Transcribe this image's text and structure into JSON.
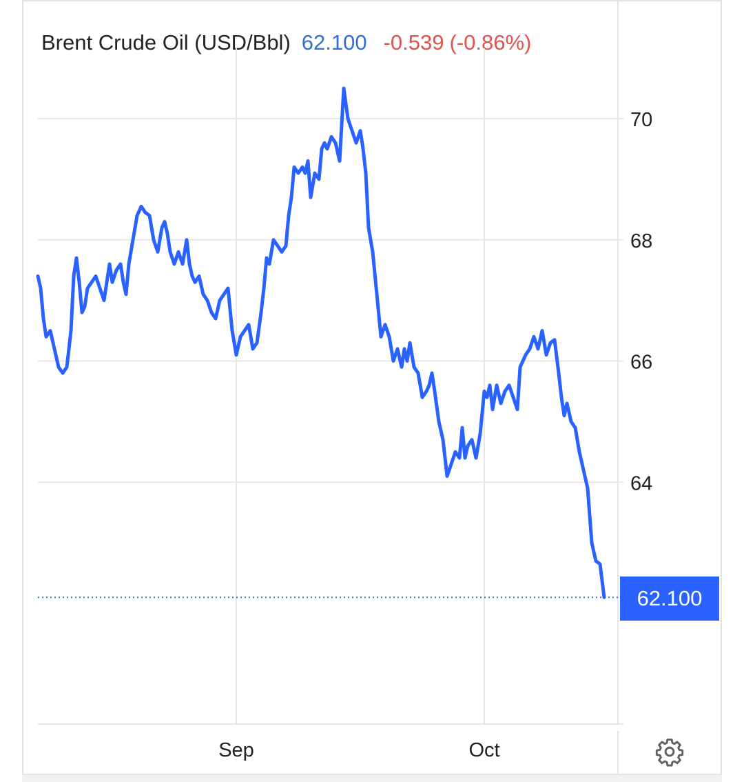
{
  "header": {
    "title": "Brent Crude Oil (USD/Bbl)",
    "last": "62.100",
    "change": "-0.539",
    "change_pct": "(-0.86%)"
  },
  "colors": {
    "line": "#2962ff",
    "last_text": "#2f6fd6",
    "negative": "#e0524f",
    "grid": "#e6e6e6"
  },
  "price_label": "62.100",
  "settings_icon": "gear-icon",
  "chart_data": {
    "type": "line",
    "title": "Brent Crude Oil (USD/Bbl)",
    "xlabel": "",
    "ylabel": "",
    "y_ticks": [
      64,
      66,
      68,
      70
    ],
    "x_ticks": [
      {
        "label": "Sep",
        "date": "2025-09-01"
      },
      {
        "label": "Oct",
        "date": "2025-10-01"
      }
    ],
    "xlim": [
      "2025-08-08",
      "2025-10-17"
    ],
    "ylim": [
      58.0,
      71.0
    ],
    "grid": true,
    "legend": "none",
    "last_value": 62.1,
    "series": [
      {
        "values": [
          [
            "2025-08-08",
            67.4
          ],
          [
            "2025-08-08",
            67.2
          ],
          [
            "2025-08-08",
            66.7
          ],
          [
            "2025-08-09",
            66.4
          ],
          [
            "2025-08-09",
            66.5
          ],
          [
            "2025-08-10",
            66.2
          ],
          [
            "2025-08-10",
            65.9
          ],
          [
            "2025-08-11",
            65.8
          ],
          [
            "2025-08-11",
            65.9
          ],
          [
            "2025-08-12",
            66.5
          ],
          [
            "2025-08-12",
            67.4
          ],
          [
            "2025-08-12",
            67.7
          ],
          [
            "2025-08-13",
            67.3
          ],
          [
            "2025-08-13",
            66.8
          ],
          [
            "2025-08-13",
            66.9
          ],
          [
            "2025-08-14",
            67.2
          ],
          [
            "2025-08-14",
            67.3
          ],
          [
            "2025-08-15",
            67.4
          ],
          [
            "2025-08-15",
            67.2
          ],
          [
            "2025-08-16",
            67.0
          ],
          [
            "2025-08-16",
            67.3
          ],
          [
            "2025-08-16",
            67.6
          ],
          [
            "2025-08-17",
            67.3
          ],
          [
            "2025-08-17",
            67.5
          ],
          [
            "2025-08-18",
            67.6
          ],
          [
            "2025-08-18",
            67.3
          ],
          [
            "2025-08-18",
            67.1
          ],
          [
            "2025-08-19",
            67.6
          ],
          [
            "2025-08-19",
            68.0
          ],
          [
            "2025-08-20",
            68.4
          ],
          [
            "2025-08-20",
            68.55
          ],
          [
            "2025-08-21",
            68.45
          ],
          [
            "2025-08-21",
            68.4
          ],
          [
            "2025-08-22",
            68.0
          ],
          [
            "2025-08-22",
            67.8
          ],
          [
            "2025-08-23",
            68.2
          ],
          [
            "2025-08-23",
            68.3
          ],
          [
            "2025-08-23",
            68.1
          ],
          [
            "2025-08-24",
            67.8
          ],
          [
            "2025-08-24",
            67.6
          ],
          [
            "2025-08-25",
            67.8
          ],
          [
            "2025-08-25",
            67.6
          ],
          [
            "2025-08-26",
            68.0
          ],
          [
            "2025-08-26",
            67.6
          ],
          [
            "2025-08-26",
            67.4
          ],
          [
            "2025-08-27",
            67.3
          ],
          [
            "2025-08-27",
            67.4
          ],
          [
            "2025-08-28",
            67.1
          ],
          [
            "2025-08-28",
            67.0
          ],
          [
            "2025-08-29",
            66.8
          ],
          [
            "2025-08-29",
            66.7
          ],
          [
            "2025-08-30",
            67.0
          ],
          [
            "2025-08-30",
            67.1
          ],
          [
            "2025-08-31",
            67.2
          ],
          [
            "2025-08-31",
            66.5
          ],
          [
            "2025-09-01",
            66.1
          ],
          [
            "2025-09-01",
            66.4
          ],
          [
            "2025-09-02",
            66.5
          ],
          [
            "2025-09-02",
            66.6
          ],
          [
            "2025-09-03",
            66.2
          ],
          [
            "2025-09-03",
            66.3
          ],
          [
            "2025-09-04",
            66.8
          ],
          [
            "2025-09-04",
            67.2
          ],
          [
            "2025-09-04",
            67.7
          ],
          [
            "2025-09-05",
            67.6
          ],
          [
            "2025-09-05",
            68.0
          ],
          [
            "2025-09-06",
            67.9
          ],
          [
            "2025-09-06",
            67.8
          ],
          [
            "2025-09-07",
            67.9
          ],
          [
            "2025-09-07",
            68.4
          ],
          [
            "2025-09-07",
            68.7
          ],
          [
            "2025-09-08",
            69.2
          ],
          [
            "2025-09-08",
            69.1
          ],
          [
            "2025-09-09",
            69.2
          ],
          [
            "2025-09-09",
            69.1
          ],
          [
            "2025-09-09",
            69.3
          ],
          [
            "2025-09-10",
            68.7
          ],
          [
            "2025-09-10",
            69.1
          ],
          [
            "2025-09-11",
            69.0
          ],
          [
            "2025-09-11",
            69.5
          ],
          [
            "2025-09-11",
            69.6
          ],
          [
            "2025-09-12",
            69.5
          ],
          [
            "2025-09-12",
            69.7
          ],
          [
            "2025-09-13",
            69.6
          ],
          [
            "2025-09-13",
            69.3
          ],
          [
            "2025-09-14",
            70.5
          ],
          [
            "2025-09-14",
            70.0
          ],
          [
            "2025-09-15",
            69.8
          ],
          [
            "2025-09-15",
            69.6
          ],
          [
            "2025-09-16",
            69.8
          ],
          [
            "2025-09-16",
            69.5
          ],
          [
            "2025-09-16",
            69.1
          ],
          [
            "2025-09-17",
            68.2
          ],
          [
            "2025-09-17",
            67.8
          ],
          [
            "2025-09-18",
            67.1
          ],
          [
            "2025-09-18",
            66.4
          ],
          [
            "2025-09-19",
            66.6
          ],
          [
            "2025-09-19",
            66.4
          ],
          [
            "2025-09-20",
            66.0
          ],
          [
            "2025-09-20",
            66.2
          ],
          [
            "2025-09-21",
            65.9
          ],
          [
            "2025-09-21",
            66.2
          ],
          [
            "2025-09-21",
            66.0
          ],
          [
            "2025-09-22",
            66.3
          ],
          [
            "2025-09-22",
            65.9
          ],
          [
            "2025-09-23",
            65.8
          ],
          [
            "2025-09-23",
            65.4
          ],
          [
            "2025-09-24",
            65.5
          ],
          [
            "2025-09-24",
            65.6
          ],
          [
            "2025-09-24",
            65.8
          ],
          [
            "2025-09-25",
            65.5
          ],
          [
            "2025-09-25",
            65.0
          ],
          [
            "2025-09-26",
            64.7
          ],
          [
            "2025-09-26",
            64.1
          ],
          [
            "2025-09-27",
            64.3
          ],
          [
            "2025-09-27",
            64.5
          ],
          [
            "2025-09-28",
            64.4
          ],
          [
            "2025-09-28",
            64.9
          ],
          [
            "2025-09-28",
            64.4
          ],
          [
            "2025-09-29",
            64.6
          ],
          [
            "2025-09-29",
            64.7
          ],
          [
            "2025-09-30",
            64.4
          ],
          [
            "2025-09-30",
            64.8
          ],
          [
            "2025-10-01",
            65.5
          ],
          [
            "2025-10-01",
            65.4
          ],
          [
            "2025-10-01",
            65.6
          ],
          [
            "2025-10-02",
            65.2
          ],
          [
            "2025-10-02",
            65.6
          ],
          [
            "2025-10-03",
            65.3
          ],
          [
            "2025-10-03",
            65.5
          ],
          [
            "2025-10-04",
            65.6
          ],
          [
            "2025-10-04",
            65.4
          ],
          [
            "2025-10-05",
            65.2
          ],
          [
            "2025-10-05",
            65.9
          ],
          [
            "2025-10-05",
            66.0
          ],
          [
            "2025-10-06",
            66.1
          ],
          [
            "2025-10-06",
            66.2
          ],
          [
            "2025-10-07",
            66.4
          ],
          [
            "2025-10-07",
            66.2
          ],
          [
            "2025-10-08",
            66.5
          ],
          [
            "2025-10-08",
            66.1
          ],
          [
            "2025-10-09",
            66.3
          ],
          [
            "2025-10-09",
            66.35
          ],
          [
            "2025-10-10",
            65.8
          ],
          [
            "2025-10-10",
            65.4
          ],
          [
            "2025-10-10",
            65.1
          ],
          [
            "2025-10-11",
            65.3
          ],
          [
            "2025-10-11",
            65.0
          ],
          [
            "2025-10-12",
            64.9
          ],
          [
            "2025-10-12",
            64.5
          ],
          [
            "2025-10-13",
            64.2
          ],
          [
            "2025-10-13",
            63.9
          ],
          [
            "2025-10-14",
            63.0
          ],
          [
            "2025-10-14",
            62.7
          ],
          [
            "2025-10-15",
            62.65
          ],
          [
            "2025-10-15",
            62.1
          ]
        ]
      }
    ]
  }
}
